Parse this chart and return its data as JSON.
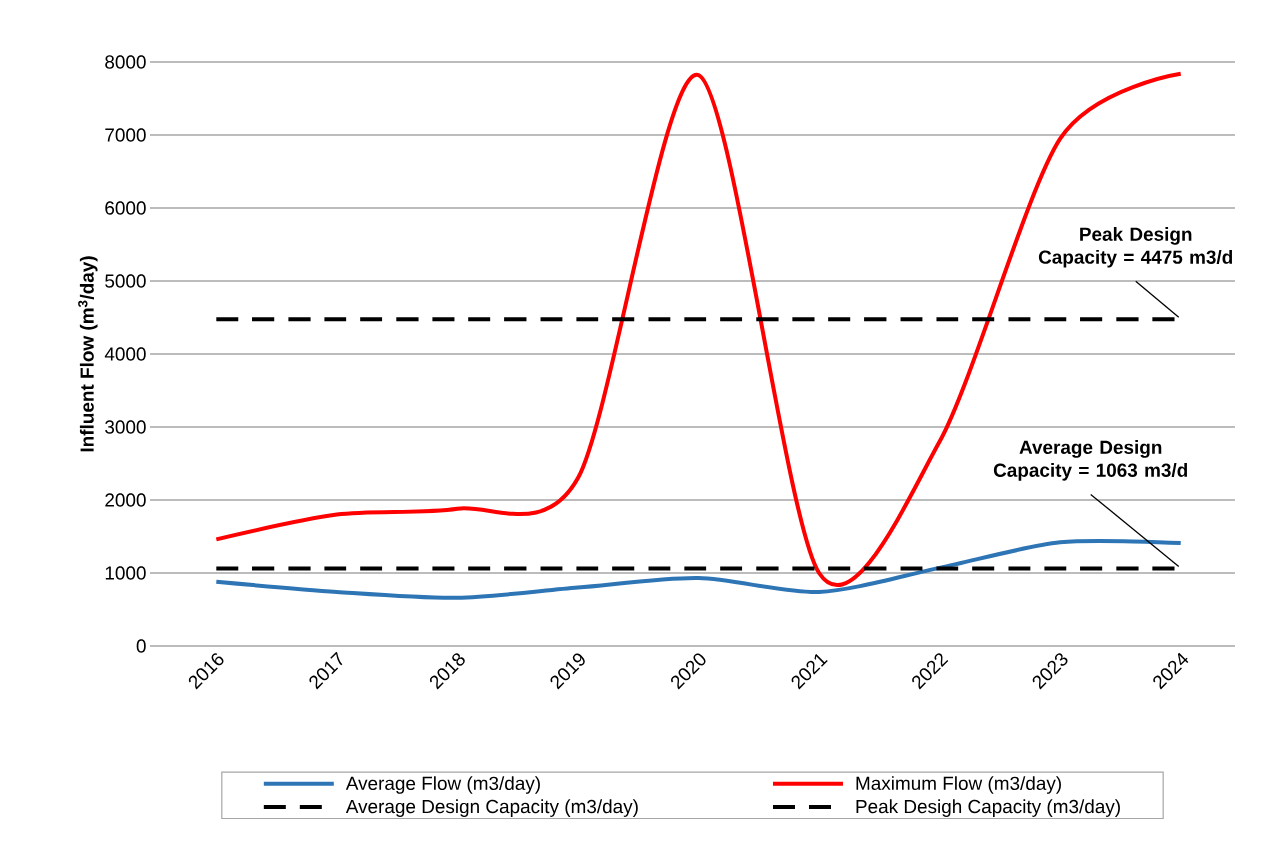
{
  "chart_data": {
    "type": "line",
    "ylabel": "Influent Flow (m$^{3}$/day)",
    "categories": [
      "2016",
      "2017",
      "2018",
      "2019",
      "2020",
      "2021",
      "2022",
      "2023",
      "2024"
    ],
    "series": [
      {
        "name": "Average Flow (m3/day)",
        "color": "#2e75b6",
        "values": [
          880,
          740,
          660,
          800,
          930,
          740,
          1070,
          1420,
          1410
        ],
        "line_style": "solid"
      },
      {
        "name": "Maximum Flow (m3/day)",
        "color": "#ff0000",
        "values": [
          1460,
          1800,
          1880,
          2300,
          7820,
          1000,
          2800,
          6950,
          7840
        ],
        "line_style": "solid"
      },
      {
        "name": "Average Design Capacity (m3/day)",
        "color": "#000000",
        "values": [
          1063,
          1063,
          1063,
          1063,
          1063,
          1063,
          1063,
          1063,
          1063
        ],
        "line_style": "dashed"
      },
      {
        "name": "Peak Desigh Capacity (m3/day)",
        "color": "#000000",
        "values": [
          4475,
          4475,
          4475,
          4475,
          4475,
          4475,
          4475,
          4475,
          4475
        ],
        "line_style": "dashed"
      }
    ],
    "ylim": [
      0,
      8000
    ],
    "yticks": [
      0,
      1000,
      2000,
      3000,
      4000,
      5000,
      6000,
      7000,
      8000
    ],
    "grid": "y",
    "legend": "bottom",
    "marker": "none",
    "annotations": [
      {
        "text": "Peak Design Capacity = 4475 m3/d",
        "x": "2024",
        "y": 4475
      },
      {
        "text": "Average Design Capacity = 1063 m3/d",
        "x": "2024",
        "y": 1063
      }
    ]
  }
}
